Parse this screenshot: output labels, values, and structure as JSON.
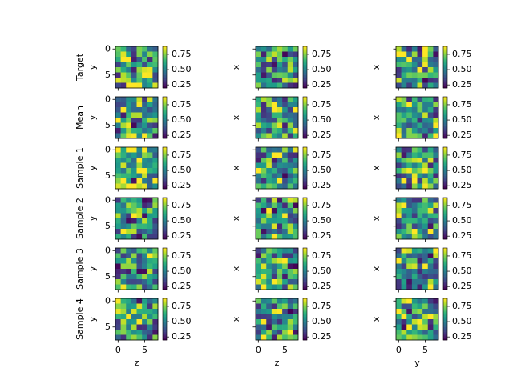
{
  "chart_data": {
    "type": "heatmap",
    "grid": {
      "rows": 6,
      "cols": 3,
      "cells_per_side": 8
    },
    "row_labels": [
      "Target",
      "Mean",
      "Sample 1",
      "Sample 2",
      "Sample 3",
      "Sample 4"
    ],
    "column_xlabels": [
      "z",
      "z",
      "y"
    ],
    "column_ylabels": [
      "y",
      "x",
      "x"
    ],
    "x_ticks": [
      "0",
      "5"
    ],
    "y_ticks": [
      "0",
      "5"
    ],
    "colorbar": {
      "colormap": "viridis",
      "range": [
        0.2,
        0.88
      ],
      "ticks": [
        "0.75",
        "0.50",
        "0.25"
      ]
    },
    "cell_values_note": "8x8 per panel, estimated"
  }
}
